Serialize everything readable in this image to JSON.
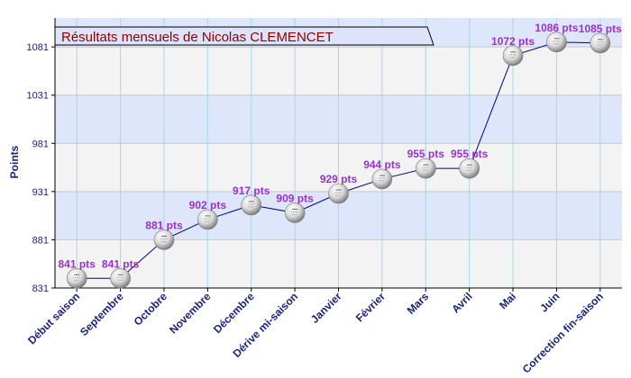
{
  "chart_data": {
    "type": "line",
    "title": "Résultats mensuels de  Nicolas CLEMENCET",
    "xlabel": "",
    "ylabel": "Points",
    "categories": [
      "Début saison",
      "Septembre",
      "Octobre",
      "Novembre",
      "Décembre",
      "Dérive mi-saison",
      "Janvier",
      "Février",
      "Mars",
      "Avril",
      "Mai",
      "Juin",
      "Correction fin-saison"
    ],
    "series": [
      {
        "values": [
          841,
          841,
          881,
          902,
          917,
          909,
          929,
          944,
          955,
          955,
          1072,
          1086,
          1085
        ],
        "labels": [
          "841 pts",
          "841 pts",
          "881 pts",
          "902 pts",
          "917 pts",
          "909 pts",
          "929 pts",
          "944 pts",
          "955 pts",
          "955 pts",
          "1072 pts",
          "1086 pts",
          "1085 pts"
        ]
      }
    ],
    "yticks": [
      831,
      881,
      931,
      981,
      1031,
      1081
    ],
    "ylim": [
      831,
      1111
    ],
    "grid": true,
    "legend": "none",
    "colors": {
      "line": "#00008b",
      "data_label": "#9932cc",
      "band": "#dde6fa",
      "band_alt": "#f3f3f3",
      "title_text": "#8b0000",
      "title_bg": "#dde4fa",
      "axis_text": "#1a237e"
    }
  }
}
